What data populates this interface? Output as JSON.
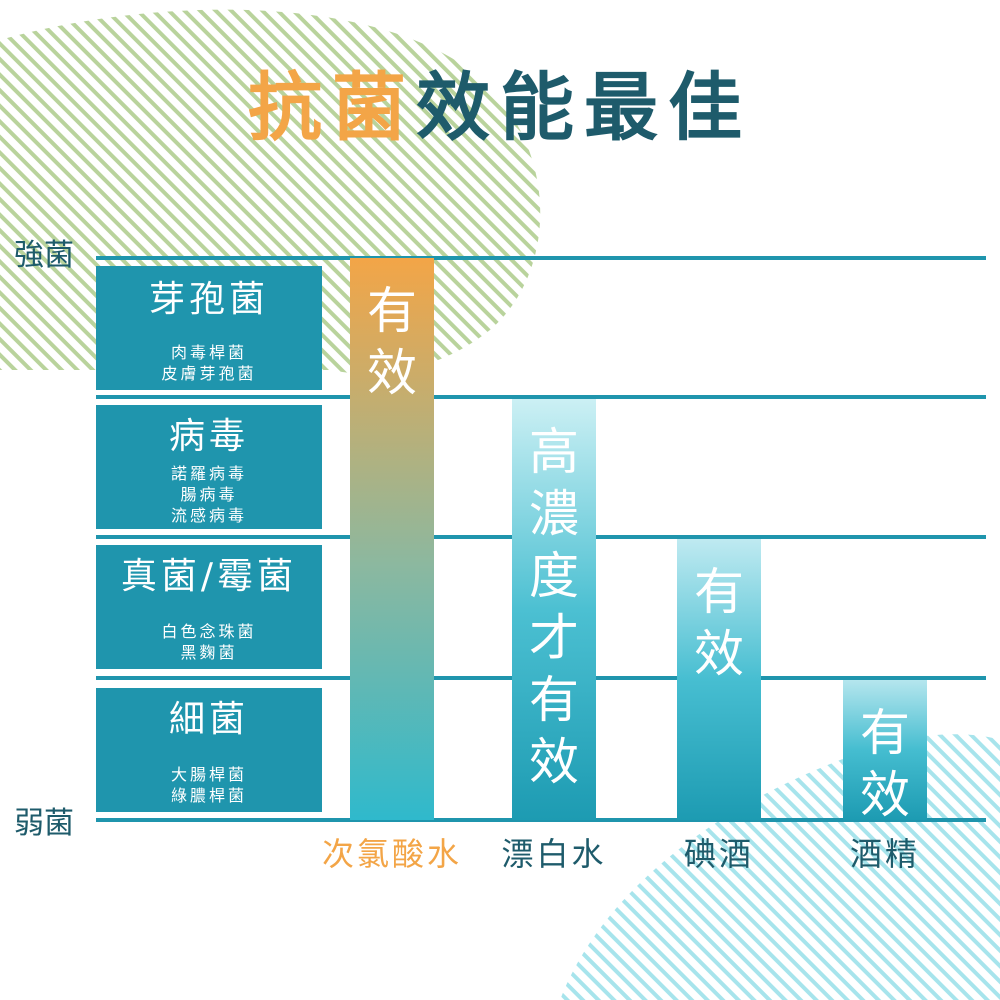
{
  "chart_data": {
    "type": "bar",
    "title_highlight": "抗菌",
    "title_rest": "效能最佳",
    "ylabel_top": "強菌",
    "ylabel_bottom": "弱菌",
    "y_levels": [
      {
        "name": "芽孢菌",
        "examples": [
          "肉毒桿菌",
          "皮膚芽孢菌"
        ]
      },
      {
        "name": "病毒",
        "examples": [
          "諾羅病毒",
          "腸病毒",
          "流感病毒"
        ]
      },
      {
        "name": "真菌/霉菌",
        "examples": [
          "白色念珠菌",
          "黑麴菌"
        ]
      },
      {
        "name": "細菌",
        "examples": [
          "大腸桿菌",
          "綠膿桿菌"
        ]
      }
    ],
    "categories": [
      "次氯酸水",
      "漂白水",
      "碘酒",
      "酒精"
    ],
    "values": [
      4,
      3,
      2,
      1
    ],
    "bar_labels": [
      "有\n效",
      "高\n濃\n度\n才\n有\n效",
      "有\n效",
      "有\n效"
    ],
    "ylim": [
      0,
      4
    ],
    "colors": {
      "highlight": "#f3a547",
      "primary": "#1f95ad",
      "dark": "#1e5b6b",
      "stripe_green": "#b9d39c",
      "stripe_cyan": "#9fe3ec"
    }
  }
}
